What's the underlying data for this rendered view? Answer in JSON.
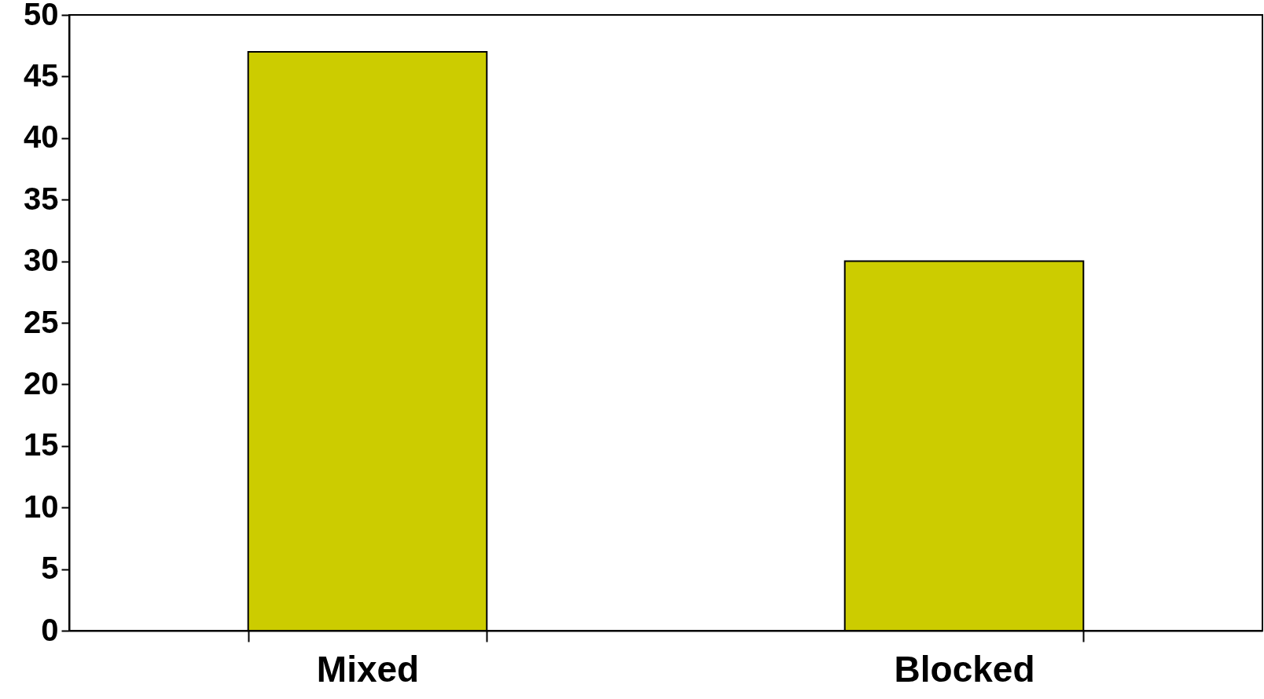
{
  "chart_data": {
    "type": "bar",
    "categories": [
      "Mixed",
      "Blocked"
    ],
    "values": [
      47,
      30
    ],
    "color": "#cccc00",
    "ylim": [
      0,
      50
    ],
    "yticks": [
      0,
      5,
      10,
      15,
      20,
      25,
      30,
      35,
      40,
      45,
      50
    ],
    "grid": false
  }
}
